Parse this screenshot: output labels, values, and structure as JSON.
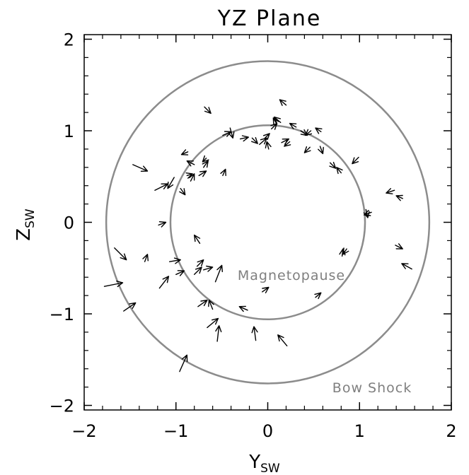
{
  "chart_data": {
    "type": "scatter",
    "title": "YZ Plane",
    "xlabel": "Y",
    "xlabel_sub": "SW",
    "ylabel": "Z",
    "ylabel_sub": "SW",
    "xlim": [
      -2,
      2
    ],
    "ylim": [
      -2.05,
      2.05
    ],
    "xticks": [
      -2,
      -1,
      0,
      1,
      2
    ],
    "yticks": [
      -2,
      -1,
      0,
      1,
      2
    ],
    "xtick_labels": [
      "−2",
      "−1",
      "0",
      "1",
      "2"
    ],
    "ytick_labels": [
      "−2",
      "−1",
      "0",
      "1",
      "2"
    ],
    "grid": false,
    "colors": {
      "curves": "#8c8c8c",
      "arrows": "#000000",
      "annotation": "#7f7f7f"
    },
    "boundaries": [
      {
        "label": "Magnetopause",
        "radius": 1.06
      },
      {
        "label": "Bow Shock",
        "radius": 1.76
      }
    ],
    "arrows": [
      {
        "x": -0.69,
        "y": 1.26,
        "dx": 0.07,
        "dy": -0.07
      },
      {
        "x": 0.2,
        "y": 1.28,
        "dx": -0.07,
        "dy": 0.06
      },
      {
        "x": -0.41,
        "y": 1.03,
        "dx": 0.03,
        "dy": -0.11
      },
      {
        "x": -0.49,
        "y": 0.95,
        "dx": 0.09,
        "dy": 0.04
      },
      {
        "x": 0.14,
        "y": 1.09,
        "dx": -0.07,
        "dy": 0.06
      },
      {
        "x": 0.1,
        "y": 1.07,
        "dx": -0.04,
        "dy": 0.07
      },
      {
        "x": 0.04,
        "y": 1.02,
        "dx": 0.06,
        "dy": 0.06
      },
      {
        "x": 0.31,
        "y": 1.04,
        "dx": -0.07,
        "dy": 0.04
      },
      {
        "x": 0.36,
        "y": 1.0,
        "dx": 0.07,
        "dy": -0.05
      },
      {
        "x": 0.47,
        "y": 1.0,
        "dx": -0.06,
        "dy": -0.05
      },
      {
        "x": 0.58,
        "y": 0.99,
        "dx": -0.06,
        "dy": 0.04
      },
      {
        "x": -0.3,
        "y": 0.91,
        "dx": 0.09,
        "dy": 0.02
      },
      {
        "x": -0.17,
        "y": 0.92,
        "dx": 0.06,
        "dy": -0.06
      },
      {
        "x": -0.03,
        "y": 0.92,
        "dx": 0.05,
        "dy": 0.05
      },
      {
        "x": -0.09,
        "y": 0.85,
        "dx": 0.08,
        "dy": 0.07
      },
      {
        "x": 0.01,
        "y": 0.8,
        "dx": -0.02,
        "dy": 0.08
      },
      {
        "x": 0.15,
        "y": 0.87,
        "dx": 0.08,
        "dy": 0.04
      },
      {
        "x": 0.24,
        "y": 0.88,
        "dx": -0.06,
        "dy": -0.05
      },
      {
        "x": 0.46,
        "y": 0.82,
        "dx": -0.06,
        "dy": -0.06
      },
      {
        "x": 0.57,
        "y": 0.83,
        "dx": 0.03,
        "dy": -0.08
      },
      {
        "x": 0.68,
        "y": 0.65,
        "dx": 0.06,
        "dy": -0.06
      },
      {
        "x": 0.8,
        "y": 0.54,
        "dx": -0.05,
        "dy": 0.06
      },
      {
        "x": 0.99,
        "y": 0.71,
        "dx": -0.07,
        "dy": -0.07
      },
      {
        "x": 1.38,
        "y": 0.35,
        "dx": -0.09,
        "dy": -0.03
      },
      {
        "x": 1.47,
        "y": 0.26,
        "dx": -0.07,
        "dy": 0.03
      },
      {
        "x": 1.07,
        "y": 0.14,
        "dx": 0.02,
        "dy": -0.09
      },
      {
        "x": 1.13,
        "y": 0.11,
        "dx": -0.08,
        "dy": -0.03
      },
      {
        "x": 1.39,
        "y": -0.25,
        "dx": 0.08,
        "dy": -0.04
      },
      {
        "x": 1.57,
        "y": -0.51,
        "dx": -0.11,
        "dy": 0.06
      },
      {
        "x": 0.86,
        "y": -0.29,
        "dx": -0.04,
        "dy": -0.06
      },
      {
        "x": 0.81,
        "y": -0.37,
        "dx": 0.01,
        "dy": 0.08
      },
      {
        "x": -1.47,
        "y": 0.63,
        "dx": 0.16,
        "dy": -0.07
      },
      {
        "x": -1.23,
        "y": 0.35,
        "dx": 0.14,
        "dy": 0.07
      },
      {
        "x": -1.02,
        "y": 0.49,
        "dx": -0.07,
        "dy": -0.12
      },
      {
        "x": -0.87,
        "y": 0.77,
        "dx": -0.07,
        "dy": -0.03
      },
      {
        "x": -0.8,
        "y": 0.63,
        "dx": -0.08,
        "dy": 0.04
      },
      {
        "x": -0.88,
        "y": 0.51,
        "dx": 0.06,
        "dy": 0.02
      },
      {
        "x": -0.84,
        "y": 0.45,
        "dx": 0.04,
        "dy": 0.08
      },
      {
        "x": -0.75,
        "y": 0.51,
        "dx": 0.08,
        "dy": 0.05
      },
      {
        "x": -0.67,
        "y": 0.7,
        "dx": -0.04,
        "dy": -0.04
      },
      {
        "x": -0.7,
        "y": 0.6,
        "dx": 0.05,
        "dy": 0.07
      },
      {
        "x": -0.95,
        "y": 0.37,
        "dx": 0.05,
        "dy": -0.07
      },
      {
        "x": -0.49,
        "y": 0.51,
        "dx": 0.03,
        "dy": 0.07
      },
      {
        "x": -1.19,
        "y": -0.03,
        "dx": 0.08,
        "dy": 0.03
      },
      {
        "x": -1.67,
        "y": -0.28,
        "dx": 0.13,
        "dy": -0.13
      },
      {
        "x": -1.34,
        "y": -0.43,
        "dx": 0.03,
        "dy": 0.08
      },
      {
        "x": -1.07,
        "y": -0.43,
        "dx": 0.12,
        "dy": 0.02
      },
      {
        "x": -0.74,
        "y": -0.23,
        "dx": -0.06,
        "dy": 0.09
      },
      {
        "x": -1.78,
        "y": -0.7,
        "dx": 0.2,
        "dy": 0.04
      },
      {
        "x": -1.18,
        "y": -0.72,
        "dx": 0.1,
        "dy": 0.13
      },
      {
        "x": -1.0,
        "y": -0.57,
        "dx": 0.09,
        "dy": 0.04
      },
      {
        "x": -0.8,
        "y": -0.57,
        "dx": 0.08,
        "dy": 0.08
      },
      {
        "x": -0.77,
        "y": -0.48,
        "dx": 0.07,
        "dy": 0.07
      },
      {
        "x": -0.7,
        "y": -0.52,
        "dx": 0.1,
        "dy": 0.03
      },
      {
        "x": -0.57,
        "y": -0.65,
        "dx": 0.07,
        "dy": 0.18
      },
      {
        "x": -1.57,
        "y": -0.97,
        "dx": 0.13,
        "dy": 0.09
      },
      {
        "x": -0.76,
        "y": -0.92,
        "dx": 0.1,
        "dy": 0.07
      },
      {
        "x": -0.6,
        "y": -0.95,
        "dx": -0.04,
        "dy": 0.1
      },
      {
        "x": -0.66,
        "y": -1.15,
        "dx": 0.12,
        "dy": 0.1
      },
      {
        "x": -0.55,
        "y": -1.3,
        "dx": 0.02,
        "dy": 0.17
      },
      {
        "x": -0.13,
        "y": -1.29,
        "dx": -0.02,
        "dy": 0.15
      },
      {
        "x": 0.21,
        "y": -1.35,
        "dx": -0.1,
        "dy": 0.12
      },
      {
        "x": -0.96,
        "y": -1.63,
        "dx": 0.08,
        "dy": 0.18
      },
      {
        "x": -0.22,
        "y": -0.96,
        "dx": -0.09,
        "dy": 0.04
      },
      {
        "x": -0.06,
        "y": -0.76,
        "dx": 0.07,
        "dy": 0.05
      },
      {
        "x": 0.52,
        "y": -0.82,
        "dx": 0.06,
        "dy": 0.05
      }
    ]
  }
}
